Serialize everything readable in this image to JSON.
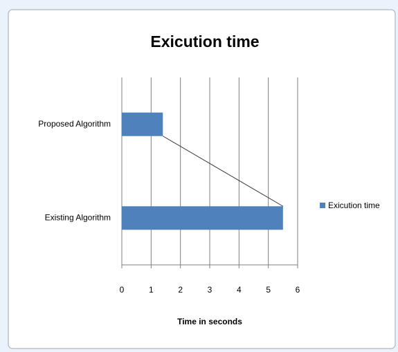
{
  "chart_data": {
    "type": "hbar",
    "title": "Exicution time",
    "categories": [
      "Proposed Algorithm",
      "Existing Algorithm"
    ],
    "series": [
      {
        "name": "Exicution time",
        "color": "#4f81bd",
        "values": [
          1.4,
          5.5
        ]
      }
    ],
    "xlabel": "Time in seconds",
    "xlim": [
      0,
      6
    ],
    "xticks": [
      0,
      1,
      2,
      3,
      4,
      5,
      6
    ],
    "grid": true,
    "legend": "right",
    "series_lines": true
  }
}
